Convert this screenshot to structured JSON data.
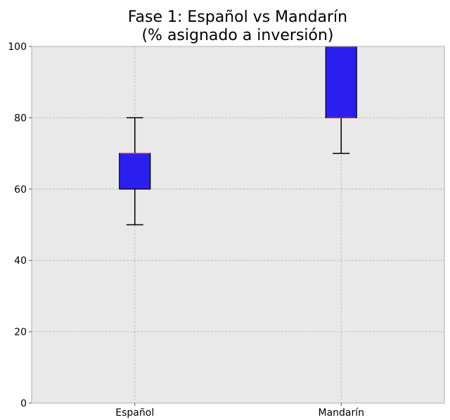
{
  "chart_data": {
    "type": "box",
    "title": "Fase 1: Español vs Mandarín\n(% asignado a inversión)",
    "title_lines": [
      "Fase 1: Español vs Mandarín",
      "(% asignado a inversión)"
    ],
    "xlabel": "",
    "ylabel": "",
    "categories": [
      "Español",
      "Mandarín"
    ],
    "boxes": [
      {
        "category": "Español",
        "whisker_low": 50,
        "q1": 60,
        "median": 70,
        "q3": 70,
        "whisker_high": 80
      },
      {
        "category": "Mandarín",
        "whisker_low": 70,
        "q1": 80,
        "median": 80,
        "q3": 100,
        "whisker_high": 100
      }
    ],
    "ylim": [
      0,
      100
    ],
    "yticks": [
      0,
      20,
      40,
      60,
      80,
      100
    ],
    "grid": true,
    "legend": "none"
  },
  "colors": {
    "plot_background": "#e9e9e9",
    "box_fill": "#2b1ff0",
    "median_line": "#cc2a2a",
    "grid": "#b5b5b5",
    "axis_frame": "#b0b0b0"
  }
}
